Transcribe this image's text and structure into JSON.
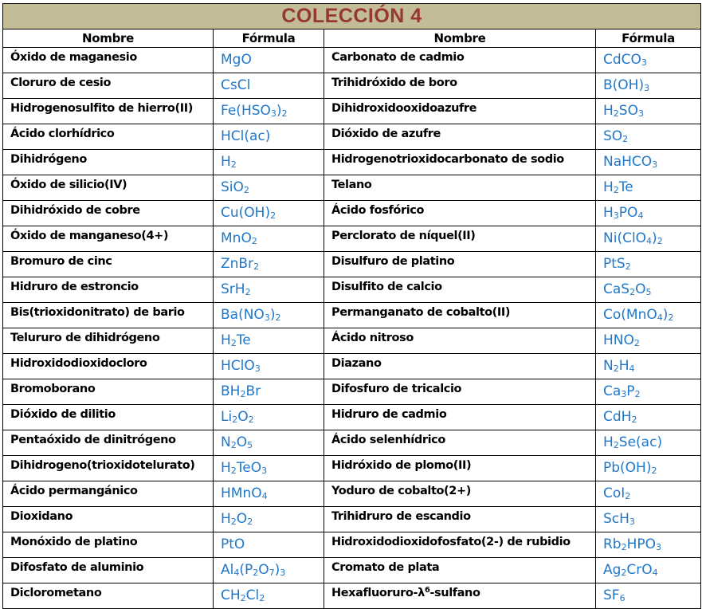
{
  "title": "COLECCIÓN 4",
  "colors": {
    "title_bg": "#c4bc96",
    "title_text": "#953734",
    "formula_text": "#1f77c9",
    "name_text": "#000000"
  },
  "headers": {
    "name_left": "Nombre",
    "formula_left": "Fórmula",
    "name_right": "Nombre",
    "formula_right": "Fórmula"
  },
  "left": [
    {
      "name": "Óxido de maganesio",
      "formula": "MgO"
    },
    {
      "name": "Cloruro de cesio",
      "formula": "CsCl"
    },
    {
      "name": "Hidrogenosulfito de hierro(II)",
      "formula": "Fe(HSO₃)₂"
    },
    {
      "name": "Ácido clorhídrico",
      "formula": "HCl(ac)"
    },
    {
      "name": "Dihidrógeno",
      "formula": "H₂"
    },
    {
      "name": "Óxido de silicio(IV)",
      "formula": "SiO₂"
    },
    {
      "name": "Dihidróxido de cobre",
      "formula": "Cu(OH)₂"
    },
    {
      "name": "Óxido de manganeso(4+)",
      "formula": "MnO₂"
    },
    {
      "name": "Bromuro de cinc",
      "formula": "ZnBr₂"
    },
    {
      "name": "Hidruro de estroncio",
      "formula": "SrH₂"
    },
    {
      "name": "Bis(trioxidonitrato) de bario",
      "formula": "Ba(NO₃)₂"
    },
    {
      "name": "Telururo de dihidrógeno",
      "formula": "H₂Te"
    },
    {
      "name": "Hidroxidodioxidocloro",
      "formula": "HClO₃"
    },
    {
      "name": "Bromoborano",
      "formula": "BH₂Br"
    },
    {
      "name": "Dióxido de dilitio",
      "formula": "Li₂O₂"
    },
    {
      "name": "Pentaóxido de dinitrógeno",
      "formula": "N₂O₅"
    },
    {
      "name": "Dihidrogeno(trioxidotelurato)",
      "formula": "H₂TeO₃"
    },
    {
      "name": "Ácido permangánico",
      "formula": "HMnO₄"
    },
    {
      "name": "Dioxidano",
      "formula": "H₂O₂"
    },
    {
      "name": "Monóxido de platino",
      "formula": "PtO"
    },
    {
      "name": "Difosfato de aluminio",
      "formula": "Al₄(P₂O₇)₃"
    },
    {
      "name": "Diclorometano",
      "formula": "CH₂Cl₂"
    }
  ],
  "right": [
    {
      "name": "Carbonato de cadmio",
      "formula": "CdCO₃"
    },
    {
      "name": "Trihidróxido de boro",
      "formula": "B(OH)₃"
    },
    {
      "name": "Dihidroxidooxidoazufre",
      "formula": "H₂SO₃"
    },
    {
      "name": "Dióxido de azufre",
      "formula": "SO₂"
    },
    {
      "name": "Hidrogenotrioxidocarbonato de sodio",
      "formula": "NaHCO₃"
    },
    {
      "name": "Telano",
      "formula": "H₂Te"
    },
    {
      "name": "Ácido fosfórico",
      "formula": "H₃PO₄"
    },
    {
      "name": "Perclorato de níquel(II)",
      "formula": "Ni(ClO₄)₂"
    },
    {
      "name": "Disulfuro de platino",
      "formula": "PtS₂"
    },
    {
      "name": "Disulfito de calcio",
      "formula": "CaS₂O₅"
    },
    {
      "name": "Permanganato de cobalto(II)",
      "formula": "Co(MnO₄)₂"
    },
    {
      "name": "Ácido nitroso",
      "formula": "HNO₂"
    },
    {
      "name": "Diazano",
      "formula": "N₂H₄"
    },
    {
      "name": "Difosfuro de tricalcio",
      "formula": "Ca₃P₂"
    },
    {
      "name": "Hidruro de cadmio",
      "formula": "CdH₂"
    },
    {
      "name": "Ácido selenhídrico",
      "formula": "H₂Se(ac)"
    },
    {
      "name": "Hidróxido de plomo(II)",
      "formula": "Pb(OH)₂"
    },
    {
      "name": "Yoduro de cobalto(2+)",
      "formula": "CoI₂"
    },
    {
      "name": "Trihidruro de escandio",
      "formula": "ScH₃"
    },
    {
      "name": "Hidroxidodioxidofosfato(2-) de rubidio",
      "formula": "Rb₂HPO₃"
    },
    {
      "name": "Cromato de plata",
      "formula": "Ag₂CrO₄"
    },
    {
      "name": "Hexafluoruro-λ⁶-sulfano",
      "formula": "SF₆"
    }
  ]
}
